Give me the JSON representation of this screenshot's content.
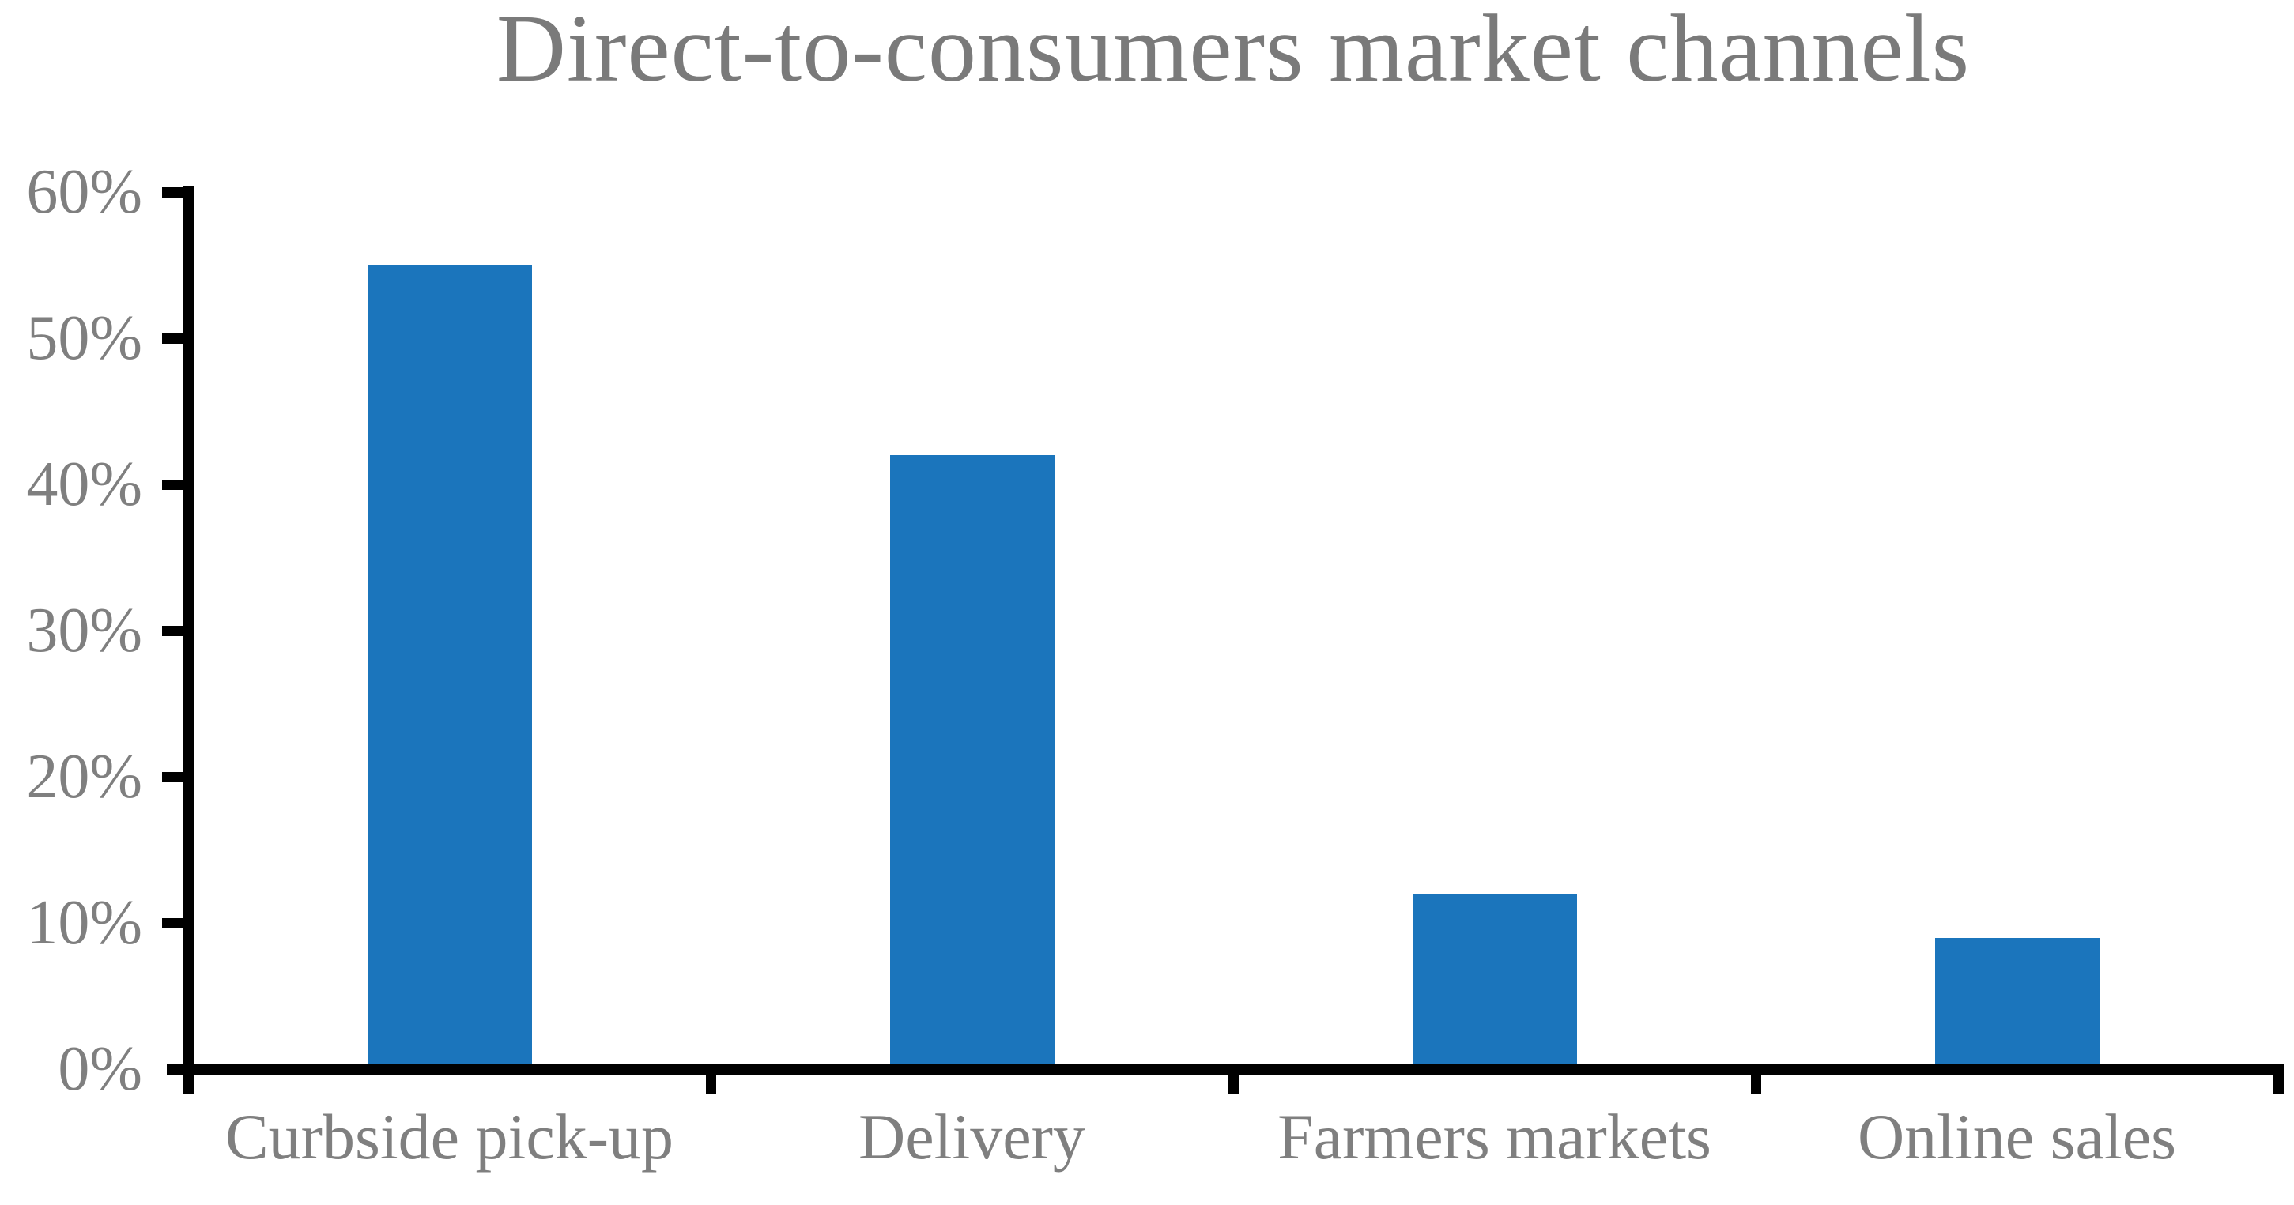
{
  "title": "Direct-to-consumers market channels",
  "colors": {
    "bar": "#1B75BC",
    "axis": "#000000",
    "text": "#7F7F7F"
  },
  "chart_data": {
    "type": "bar",
    "title": "Direct-to-consumers market channels",
    "categories": [
      "Curbside pick-up",
      "Delivery",
      "Farmers markets",
      "Online sales"
    ],
    "values": [
      55,
      42,
      12,
      9
    ],
    "unit": "%",
    "xlabel": "",
    "ylabel": "",
    "ylim": [
      0,
      60
    ],
    "ytick_step": 10,
    "ytick_labels": [
      "0%",
      "10%",
      "20%",
      "30%",
      "40%",
      "50%",
      "60%"
    ],
    "grid": false,
    "legend": "none",
    "bar_color": "#1B75BC"
  }
}
